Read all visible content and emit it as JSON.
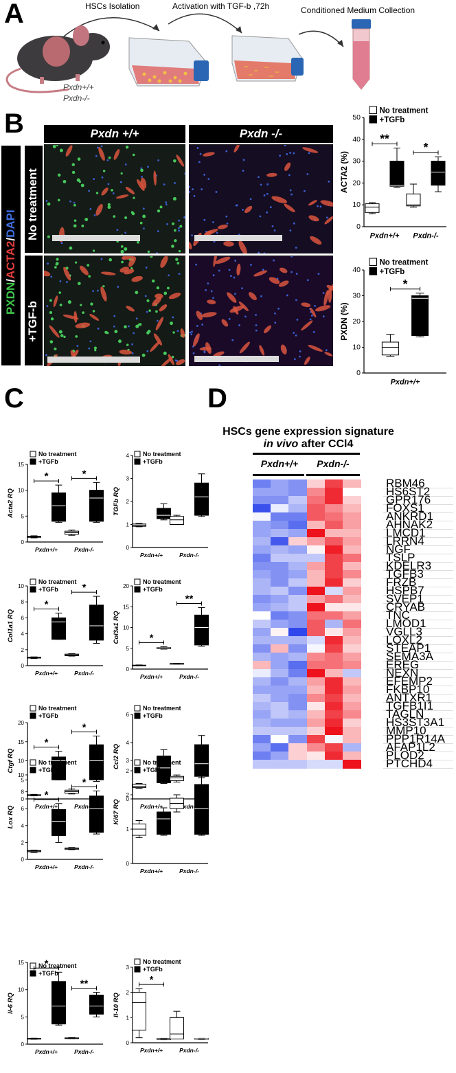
{
  "panels": {
    "A": "A",
    "B": "B",
    "C": "C",
    "D": "D"
  },
  "panel_a": {
    "step1": "HSCs Isolation",
    "step2": "Activation with TGF-b ,72h",
    "step3": "Conditioned Medium Collection",
    "geno1": "Pxdn+/+",
    "geno2": "Pxdn-/-"
  },
  "panel_b": {
    "col1": "Pxdn +/+",
    "col2": "Pxdn -/-",
    "row1": "No treatment",
    "row2": "+TGF-b",
    "stain_pxdn": "PXDN",
    "stain_acta2": "ACTA2",
    "stain_dapi": "DAPI",
    "slash": "/"
  },
  "legend": {
    "no_treatment": "No treatment",
    "tgfb": "+TGFb"
  },
  "chart_data": [
    {
      "id": "acta2_b",
      "type": "box",
      "ylabel": "ACTA2 (%)",
      "ylim": [
        0,
        50
      ],
      "yticks": [
        0,
        10,
        20,
        30,
        40,
        50
      ],
      "categories": [
        "Pxdn+/+",
        "Pxdn-/-"
      ],
      "series": [
        {
          "name": "No treatment",
          "boxes": [
            {
              "min": 6,
              "q1": 6.5,
              "median": 9,
              "q3": 10.5,
              "max": 11
            },
            {
              "min": 9,
              "q1": 9.5,
              "median": 10,
              "q3": 15,
              "max": 19.5
            }
          ]
        },
        {
          "name": "+TGFb",
          "boxes": [
            {
              "min": 18,
              "q1": 18.5,
              "median": 19,
              "q3": 30,
              "max": 36
            },
            {
              "min": 16,
              "q1": 19,
              "median": 25,
              "q3": 30,
              "max": 32
            }
          ]
        }
      ],
      "sig": [
        "**",
        "*"
      ]
    },
    {
      "id": "pxdn_b",
      "type": "box",
      "ylabel": "PXDN (%)",
      "ylim": [
        0,
        40
      ],
      "yticks": [
        0,
        10,
        20,
        30,
        40
      ],
      "categories": [
        "Pxdn+/+"
      ],
      "series": [
        {
          "name": "No treatment",
          "boxes": [
            {
              "min": 6.5,
              "q1": 7,
              "median": 10,
              "q3": 12,
              "max": 15
            }
          ]
        },
        {
          "name": "+TGFb",
          "boxes": [
            {
              "min": 14,
              "q1": 14.5,
              "median": 29,
              "q3": 30,
              "max": 31
            }
          ]
        }
      ],
      "sig": [
        "*"
      ]
    },
    {
      "id": "acta2_c",
      "type": "box",
      "ylabel": "Acta2 RQ",
      "ylim": [
        0,
        15
      ],
      "yticks": [
        0,
        5,
        10,
        15
      ],
      "categories": [
        "Pxdn+/+",
        "Pxdn-/-"
      ],
      "series": [
        {
          "name": "No treatment",
          "boxes": [
            {
              "min": 0.8,
              "q1": 0.9,
              "median": 1,
              "q3": 1.1,
              "max": 1.2
            },
            {
              "min": 1.3,
              "q1": 1.5,
              "median": 1.8,
              "q3": 2.1,
              "max": 2.3
            }
          ]
        },
        {
          "name": "+TGFb",
          "boxes": [
            {
              "min": 3.8,
              "q1": 4,
              "median": 7,
              "q3": 9.5,
              "max": 11
            },
            {
              "min": 3.8,
              "q1": 4,
              "median": 8.5,
              "q3": 10,
              "max": 11.5
            }
          ]
        }
      ],
      "sig": [
        "*",
        "*"
      ]
    },
    {
      "id": "tgfb_c",
      "type": "box",
      "ylabel": "TGFb RQ",
      "ylim": [
        0,
        4
      ],
      "yticks": [
        0,
        1,
        2,
        3,
        4
      ],
      "categories": [
        "Pxdn+/+",
        "Pxdn-/-"
      ],
      "series": [
        {
          "name": "No treatment",
          "boxes": [
            {
              "min": 0.9,
              "q1": 0.92,
              "median": 0.97,
              "q3": 1.02,
              "max": 1.05
            },
            {
              "min": 1,
              "q1": 1,
              "median": 1.2,
              "q3": 1.35,
              "max": 1.4
            }
          ]
        },
        {
          "name": "+TGFb",
          "boxes": [
            {
              "min": 1.2,
              "q1": 1.25,
              "median": 1.4,
              "q3": 1.7,
              "max": 1.9
            },
            {
              "min": 1.35,
              "q1": 1.4,
              "median": 2.2,
              "q3": 2.8,
              "max": 3.2
            }
          ]
        }
      ],
      "sig": []
    },
    {
      "id": "col1a1_c",
      "type": "box",
      "ylabel": "Col1a1 RQ",
      "ylim": [
        0,
        10
      ],
      "yticks": [
        0,
        2,
        4,
        6,
        8,
        10
      ],
      "categories": [
        "Pxdn+/+",
        "Pxdn-/-"
      ],
      "series": [
        {
          "name": "No treatment",
          "boxes": [
            {
              "min": 0.9,
              "q1": 0.95,
              "median": 1,
              "q3": 1.05,
              "max": 1.1
            },
            {
              "min": 1.2,
              "q1": 1.25,
              "median": 1.35,
              "q3": 1.45,
              "max": 1.5
            }
          ]
        },
        {
          "name": "+TGFb",
          "boxes": [
            {
              "min": 3.3,
              "q1": 3.3,
              "median": 5.5,
              "q3": 6,
              "max": 6.6
            },
            {
              "min": 2.8,
              "q1": 3.2,
              "median": 5,
              "q3": 7.6,
              "max": 8.7
            }
          ]
        }
      ],
      "sig": [
        "*",
        "*"
      ]
    },
    {
      "id": "col3a1_c",
      "type": "box",
      "ylabel": "Col3a1 RQ",
      "ylim": [
        0,
        20
      ],
      "yticks": [
        0,
        5,
        10,
        15,
        20
      ],
      "categories": [
        "Pxdn+/+",
        "Pxdn-/-"
      ],
      "series": [
        {
          "name": "No treatment",
          "boxes": [
            {
              "min": 0.8,
              "q1": 0.85,
              "median": 0.9,
              "q3": 0.95,
              "max": 1
            },
            {
              "min": 1.2,
              "q1": 1.25,
              "median": 1.3,
              "q3": 1.35,
              "max": 1.4
            }
          ]
        },
        {
          "name": "+TGFb",
          "boxes": [
            {
              "min": 4.8,
              "q1": 4.9,
              "median": 5.1,
              "q3": 5.2,
              "max": 5.4
            },
            {
              "min": 5.5,
              "q1": 5.8,
              "median": 10,
              "q3": 13,
              "max": 14.8
            }
          ]
        }
      ],
      "sig": [
        "*",
        "**"
      ]
    },
    {
      "id": "ctgf_c",
      "type": "box",
      "ylabel": "Ctgf RQ",
      "ylim": [
        0,
        20
      ],
      "yticks": [
        0,
        5,
        10,
        15,
        20
      ],
      "categories": [
        "Pxdn+/+",
        "Pxdn-/-"
      ],
      "series": [
        {
          "name": "No treatment",
          "boxes": [
            {
              "min": 0.8,
              "q1": 0.9,
              "median": 1,
              "q3": 1.1,
              "max": 1.2
            },
            {
              "min": 1.3,
              "q1": 1.5,
              "median": 1.9,
              "q3": 2.3,
              "max": 2.6
            }
          ]
        },
        {
          "name": "+TGFb",
          "boxes": [
            {
              "min": 5,
              "q1": 5,
              "median": 10,
              "q3": 11,
              "max": 12.5
            },
            {
              "min": 4.6,
              "q1": 5,
              "median": 10,
              "q3": 14.2,
              "max": 16.5
            }
          ]
        }
      ],
      "sig": [
        "*",
        "*"
      ]
    },
    {
      "id": "ccl2_c",
      "type": "box",
      "ylabel": "Ccl2 RQ",
      "ylim": [
        0,
        6
      ],
      "yticks": [
        0,
        2,
        4,
        6
      ],
      "categories": [
        "Pxdn+/+",
        "Pxdn-/-"
      ],
      "series": [
        {
          "name": "No treatment",
          "boxes": [
            {
              "min": 0.75,
              "q1": 0.8,
              "median": 0.9,
              "q3": 1.05,
              "max": 1.1
            },
            {
              "min": 1.2,
              "q1": 1.3,
              "median": 1.5,
              "q3": 1.6,
              "max": 1.7
            }
          ]
        },
        {
          "name": "+TGFb",
          "boxes": [
            {
              "min": 1.1,
              "q1": 1.15,
              "median": 2.2,
              "q3": 3.05,
              "max": 3.5
            },
            {
              "min": 1.5,
              "q1": 1.6,
              "median": 2.5,
              "q3": 3.85,
              "max": 4.5
            }
          ]
        }
      ],
      "sig": []
    },
    {
      "id": "lox_c",
      "type": "box",
      "ylabel": "Lox RQ",
      "ylim": [
        0,
        10
      ],
      "yticks": [
        0,
        2,
        4,
        6,
        8,
        10
      ],
      "categories": [
        "Pxdn+/+",
        "Pxdn-/-"
      ],
      "series": [
        {
          "name": "No treatment",
          "boxes": [
            {
              "min": 0.8,
              "q1": 0.9,
              "median": 1,
              "q3": 1.05,
              "max": 1.1
            },
            {
              "min": 1.15,
              "q1": 1.2,
              "median": 1.3,
              "q3": 1.35,
              "max": 1.4
            }
          ]
        },
        {
          "name": "+TGFb",
          "boxes": [
            {
              "min": 2,
              "q1": 2.8,
              "median": 4.5,
              "q3": 5.9,
              "max": 6.6
            },
            {
              "min": 3,
              "q1": 3.2,
              "median": 6,
              "q3": 7.5,
              "max": 8.1
            }
          ]
        }
      ],
      "sig": [
        "*",
        "*"
      ]
    },
    {
      "id": "ki67_c",
      "type": "box",
      "ylabel": "Ki67 RQ",
      "ylim": [
        0,
        3
      ],
      "yticks": [
        0,
        1,
        2,
        3
      ],
      "categories": [
        "Pxdn+/+",
        "Pxdn-/-"
      ],
      "series": [
        {
          "name": "No treatment",
          "boxes": [
            {
              "min": 0.75,
              "q1": 0.82,
              "median": 1,
              "q3": 1.15,
              "max": 1.25
            },
            {
              "min": 1.5,
              "q1": 1.6,
              "median": 1.75,
              "q3": 1.9,
              "max": 2
            }
          ]
        },
        {
          "name": "+TGFb",
          "boxes": [
            {
              "min": 0.82,
              "q1": 0.85,
              "median": 1.3,
              "q3": 1.5,
              "max": 1.62
            },
            {
              "min": 0.82,
              "q1": 0.85,
              "median": 1.6,
              "q3": 2.3,
              "max": 2.5
            }
          ]
        }
      ],
      "sig": []
    },
    {
      "id": "il6_c",
      "type": "box",
      "ylabel": "Il-6 RQ",
      "ylim": [
        0,
        15
      ],
      "yticks": [
        0,
        5,
        10,
        15
      ],
      "categories": [
        "Pxdn+/+",
        "Pxdn-/-"
      ],
      "series": [
        {
          "name": "No treatment",
          "boxes": [
            {
              "min": 0.9,
              "q1": 0.95,
              "median": 1,
              "q3": 1.05,
              "max": 1.1
            },
            {
              "min": 1,
              "q1": 1.05,
              "median": 1.1,
              "q3": 1.15,
              "max": 1.2
            }
          ]
        },
        {
          "name": "+TGFb",
          "boxes": [
            {
              "min": 3.5,
              "q1": 3.7,
              "median": 7,
              "q3": 11.5,
              "max": 13.2
            },
            {
              "min": 5,
              "q1": 5.5,
              "median": 7,
              "q3": 9,
              "max": 9.5
            }
          ]
        }
      ],
      "sig": [
        "*",
        "**"
      ]
    },
    {
      "id": "il10_c",
      "type": "box",
      "ylabel": "Il-10 RQ",
      "ylim": [
        0,
        3
      ],
      "yticks": [
        0,
        1,
        2,
        3
      ],
      "categories": [
        "Pxdn+/+",
        "Pxdn-/-"
      ],
      "series": [
        {
          "name": "No treatment",
          "boxes": [
            {
              "min": 0.2,
              "q1": 0.5,
              "median": 1.6,
              "q3": 2,
              "max": 2.15
            },
            {
              "min": 0.15,
              "q1": 0.15,
              "median": 0.35,
              "q3": 1,
              "max": 1.25
            }
          ]
        },
        {
          "name": "+TGFb",
          "boxes": [
            {
              "min": 0.12,
              "q1": 0.13,
              "median": 0.15,
              "q3": 0.17,
              "max": 0.18
            },
            {
              "min": 0.13,
              "q1": 0.14,
              "median": 0.16,
              "q3": 0.17,
              "max": 0.18
            }
          ]
        }
      ],
      "sig": [
        "*"
      ]
    }
  ],
  "panel_d": {
    "title1": "HSCs gene expression signature",
    "title2_italic": "in vivo",
    "title2_rest": " after CCl4",
    "group1": "Pxdn+/+",
    "group2": "Pxdn-/-",
    "heatmap": {
      "type": "heatmap",
      "genes": [
        "RBM46",
        "HS6ST2",
        "GPR176",
        "FOXS1",
        "ANKRD1",
        "AHNAK2",
        "LMCD1",
        "LRRN4",
        "NGF",
        "TSLP",
        "KDELR3",
        "TGFB3",
        "FRZB",
        "HSPB7",
        "SVEP1",
        "CRYAB",
        "TNC",
        "LMOD1",
        "VGLL3",
        "LOXL2",
        "STEAP1",
        "SEMA3A",
        "EREG",
        "NEXN",
        "EFEMP2",
        "FKBP10",
        "ANTXR1",
        "TGFB1I1",
        "TAGLN",
        "HS3ST3A1",
        "MMP10",
        "PPP1R14A",
        "AFAP1L2",
        "PLOD2",
        "PTCHD4"
      ],
      "samples": [
        "Pxdn+/+",
        "Pxdn+/+",
        "Pxdn+/+",
        "Pxdn-/-",
        "Pxdn-/-",
        "Pxdn-/-"
      ],
      "values": [
        [
          -0.7,
          -0.5,
          -0.6,
          0.2,
          0.8,
          0.3
        ],
        [
          -0.5,
          -0.5,
          -0.6,
          0.5,
          0.9,
          0.0
        ],
        [
          -0.6,
          -0.6,
          -0.3,
          0.6,
          0.9,
          0.2
        ],
        [
          -0.95,
          -0.1,
          -0.4,
          0.7,
          0.5,
          0.3
        ],
        [
          -0.05,
          -0.7,
          -0.7,
          0.7,
          0.6,
          0.4
        ],
        [
          -0.5,
          -0.6,
          -0.8,
          0.3,
          0.7,
          0.4
        ],
        [
          -0.5,
          -0.4,
          -0.5,
          1.0,
          0.3,
          0.3
        ],
        [
          -0.4,
          -0.9,
          0.2,
          0.4,
          0.7,
          0.4
        ],
        [
          -0.5,
          -0.4,
          -0.5,
          0.05,
          0.95,
          0.3
        ],
        [
          -0.7,
          -0.3,
          -0.3,
          -0.3,
          0.8,
          0.6
        ],
        [
          -0.6,
          -0.6,
          -0.4,
          0.4,
          0.8,
          0.3
        ],
        [
          -0.5,
          -0.6,
          -0.5,
          0.3,
          0.8,
          0.5
        ],
        [
          -0.4,
          -0.6,
          -0.3,
          0.3,
          0.9,
          0.2
        ],
        [
          -0.4,
          -0.3,
          -0.6,
          1.0,
          -0.2,
          0.4
        ],
        [
          -0.6,
          -0.5,
          -0.3,
          0.4,
          0.6,
          0.3
        ],
        [
          -0.5,
          -0.4,
          -0.3,
          1.0,
          0.1,
          0.1
        ],
        [
          0.0,
          -0.7,
          -0.6,
          0.6,
          0.6,
          0.4
        ],
        [
          -0.3,
          -0.5,
          -0.6,
          0.7,
          -0.4,
          0.6
        ],
        [
          -0.5,
          0.05,
          -1.0,
          0.7,
          0.1,
          0.4
        ],
        [
          -0.4,
          -0.4,
          -0.4,
          -0.2,
          0.9,
          0.3
        ],
        [
          -0.6,
          0.3,
          -0.6,
          -0.05,
          0.8,
          0.2
        ],
        [
          -0.4,
          -0.5,
          -0.4,
          0.5,
          0.6,
          0.4
        ],
        [
          0.3,
          -0.5,
          -0.8,
          0.6,
          0.6,
          0.5
        ],
        [
          -0.1,
          -0.4,
          -0.7,
          1.0,
          0.3,
          -0.3
        ],
        [
          -0.4,
          -0.6,
          -0.4,
          0.4,
          0.9,
          0.3
        ],
        [
          -0.5,
          -0.5,
          -0.5,
          0.3,
          0.9,
          0.4
        ],
        [
          -0.3,
          -0.5,
          -0.6,
          0.5,
          0.8,
          0.3
        ],
        [
          -0.4,
          -0.3,
          -0.6,
          0.1,
          0.9,
          0.4
        ],
        [
          -0.5,
          -0.3,
          -0.4,
          0.3,
          0.8,
          0.5
        ],
        [
          -0.4,
          -0.5,
          -0.5,
          0.4,
          0.9,
          0.2
        ],
        [
          -0.3,
          -0.3,
          -0.3,
          0.2,
          1.0,
          0.3
        ],
        [
          -0.7,
          0.0,
          -0.6,
          0.8,
          -0.05,
          0.3
        ],
        [
          -0.5,
          -0.8,
          0.2,
          0.5,
          0.8,
          -0.4
        ],
        [
          -0.7,
          -0.5,
          0.2,
          0.1,
          0.9,
          0.3
        ],
        [
          -0.3,
          -0.3,
          -0.3,
          -0.2,
          -0.2,
          1.0
        ]
      ]
    }
  }
}
